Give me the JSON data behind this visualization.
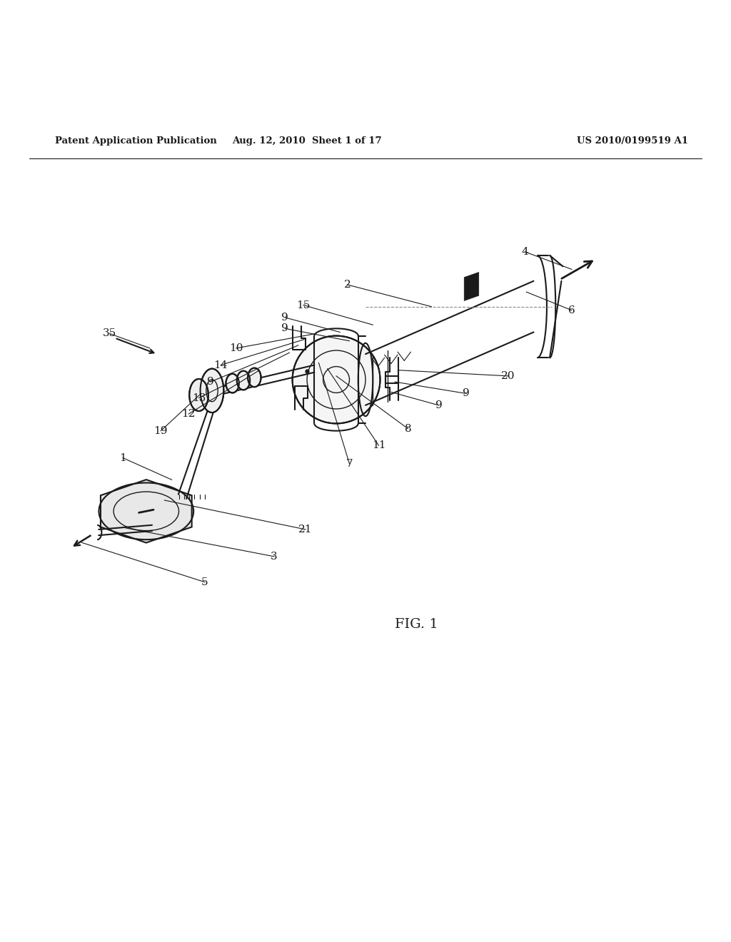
{
  "bg_color": "#ffffff",
  "line_color": "#1a1a1a",
  "header_left": "Patent Application Publication",
  "header_mid": "Aug. 12, 2010  Sheet 1 of 17",
  "header_right": "US 2010/0199519 A1",
  "fig_label": "FIG. 1",
  "label_fontsize": 11,
  "header_fontsize": 9.5,
  "fig_label_fontsize": 14
}
